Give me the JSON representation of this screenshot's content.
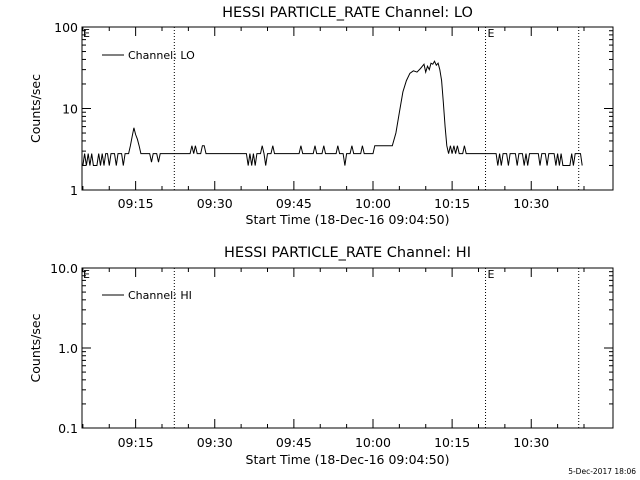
{
  "footer": {
    "timestamp": "5-Dec-2017 18:06"
  },
  "chart_data": [
    {
      "type": "line",
      "title": "HESSI PARTICLE_RATE Channel: LO",
      "xlabel": "Start Time (18-Dec-16 09:04:50)",
      "ylabel": "Counts/sec",
      "yscale": "log",
      "ylim": [
        1,
        100
      ],
      "xlim": [
        "09:04:50",
        "10:45:30"
      ],
      "x_ticks": [
        "09:15",
        "09:30",
        "09:45",
        "10:00",
        "10:15",
        "10:30"
      ],
      "y_ticks": [
        "1",
        "10",
        "100"
      ],
      "legend": {
        "label": "Channel: LO",
        "position": "top-left"
      },
      "event_lines": [
        {
          "time": "09:22:20",
          "label": ""
        },
        {
          "time": "10:21:20",
          "label": "E"
        },
        {
          "time": "10:39:00",
          "label": ""
        }
      ],
      "corner_label": "E",
      "series": [
        {
          "name": "Channel: LO",
          "points": [
            [
              "09:05:00",
              2
            ],
            [
              "09:05:20",
              2.8
            ],
            [
              "09:05:40",
              2
            ],
            [
              "09:06:00",
              2.8
            ],
            [
              "09:06:20",
              2
            ],
            [
              "09:06:40",
              2.8
            ],
            [
              "09:07:00",
              2
            ],
            [
              "09:07:40",
              2
            ],
            [
              "09:08:00",
              2.8
            ],
            [
              "09:08:20",
              2
            ],
            [
              "09:08:40",
              2.8
            ],
            [
              "09:09:00",
              2
            ],
            [
              "09:09:20",
              2.8
            ],
            [
              "09:09:40",
              2.8
            ],
            [
              "09:10:00",
              2
            ],
            [
              "09:10:20",
              2.8
            ],
            [
              "09:11:00",
              2.8
            ],
            [
              "09:11:20",
              2
            ],
            [
              "09:11:40",
              2.8
            ],
            [
              "09:12:20",
              2.8
            ],
            [
              "09:12:40",
              2
            ],
            [
              "09:13:00",
              2.8
            ],
            [
              "09:13:40",
              2.8
            ],
            [
              "09:14:00",
              3.5
            ],
            [
              "09:14:20",
              4.5
            ],
            [
              "09:14:40",
              5.8
            ],
            [
              "09:15:00",
              4.8
            ],
            [
              "09:15:20",
              4.2
            ],
            [
              "09:15:40",
              3.5
            ],
            [
              "09:16:00",
              2.8
            ],
            [
              "09:17:40",
              2.8
            ],
            [
              "09:18:00",
              2.2
            ],
            [
              "09:18:20",
              2.8
            ],
            [
              "09:19:00",
              2.8
            ],
            [
              "09:19:20",
              2.2
            ],
            [
              "09:19:40",
              2.8
            ],
            [
              "09:22:00",
              2.8
            ],
            [
              "09:22:40",
              2.8
            ],
            [
              "09:25:20",
              2.8
            ],
            [
              "09:25:40",
              3.5
            ],
            [
              "09:26:00",
              2.8
            ],
            [
              "09:26:20",
              3.5
            ],
            [
              "09:26:40",
              2.8
            ],
            [
              "09:27:20",
              2.8
            ],
            [
              "09:27:40",
              3.5
            ],
            [
              "09:28:00",
              3.5
            ],
            [
              "09:28:20",
              2.8
            ],
            [
              "09:36:00",
              2.8
            ],
            [
              "09:36:20",
              2
            ],
            [
              "09:36:40",
              2.8
            ],
            [
              "09:37:00",
              2
            ],
            [
              "09:37:20",
              2.8
            ],
            [
              "09:37:40",
              2
            ],
            [
              "09:38:00",
              2.8
            ],
            [
              "09:38:40",
              2.8
            ],
            [
              "09:39:00",
              3.5
            ],
            [
              "09:39:20",
              2.8
            ],
            [
              "09:39:40",
              2
            ],
            [
              "09:40:00",
              2.8
            ],
            [
              "09:40:40",
              2.8
            ],
            [
              "09:41:00",
              3.5
            ],
            [
              "09:41:20",
              2.8
            ],
            [
              "09:46:00",
              2.8
            ],
            [
              "09:46:20",
              3.5
            ],
            [
              "09:46:40",
              2.8
            ],
            [
              "09:48:40",
              2.8
            ],
            [
              "09:49:00",
              3.5
            ],
            [
              "09:49:20",
              2.8
            ],
            [
              "09:50:20",
              2.8
            ],
            [
              "09:50:40",
              3.5
            ],
            [
              "09:51:00",
              2.8
            ],
            [
              "09:53:00",
              2.8
            ],
            [
              "09:53:20",
              3.5
            ],
            [
              "09:53:40",
              2.8
            ],
            [
              "09:54:20",
              2.8
            ],
            [
              "09:54:40",
              2
            ],
            [
              "09:55:00",
              2.8
            ],
            [
              "09:55:40",
              2.8
            ],
            [
              "09:56:00",
              3.5
            ],
            [
              "09:56:20",
              2.8
            ],
            [
              "09:57:40",
              2.8
            ],
            [
              "09:58:00",
              3.5
            ],
            [
              "09:58:20",
              2.8
            ],
            [
              "10:00:00",
              2.8
            ],
            [
              "10:00:20",
              3.5
            ],
            [
              "10:03:40",
              3.5
            ],
            [
              "10:04:20",
              5
            ],
            [
              "10:05:00",
              9
            ],
            [
              "10:05:40",
              16
            ],
            [
              "10:06:20",
              22
            ],
            [
              "10:07:00",
              27
            ],
            [
              "10:07:40",
              29
            ],
            [
              "10:08:20",
              28
            ],
            [
              "10:09:00",
              31
            ],
            [
              "10:09:40",
              35
            ],
            [
              "10:10:00",
              28
            ],
            [
              "10:10:20",
              33
            ],
            [
              "10:10:40",
              30
            ],
            [
              "10:11:00",
              36
            ],
            [
              "10:11:20",
              35
            ],
            [
              "10:11:40",
              38
            ],
            [
              "10:12:00",
              34
            ],
            [
              "10:12:20",
              36
            ],
            [
              "10:12:40",
              30
            ],
            [
              "10:13:00",
              22
            ],
            [
              "10:13:20",
              12
            ],
            [
              "10:13:40",
              6
            ],
            [
              "10:14:00",
              3.5
            ],
            [
              "10:14:20",
              2.8
            ],
            [
              "10:14:40",
              3.5
            ],
            [
              "10:15:00",
              2.8
            ],
            [
              "10:15:20",
              3.5
            ],
            [
              "10:15:40",
              2.8
            ],
            [
              "10:16:00",
              3.5
            ],
            [
              "10:16:20",
              2.8
            ],
            [
              "10:17:00",
              2.8
            ],
            [
              "10:17:20",
              3.5
            ],
            [
              "10:17:40",
              2.8
            ],
            [
              "10:23:20",
              2.8
            ],
            [
              "10:23:40",
              2
            ],
            [
              "10:24:00",
              2.8
            ],
            [
              "10:24:20",
              2
            ],
            [
              "10:24:40",
              2.8
            ],
            [
              "10:25:20",
              2.8
            ],
            [
              "10:25:40",
              2
            ],
            [
              "10:26:00",
              2.8
            ],
            [
              "10:27:00",
              2.8
            ],
            [
              "10:27:20",
              2
            ],
            [
              "10:27:40",
              2.8
            ],
            [
              "10:28:20",
              2.8
            ],
            [
              "10:28:40",
              2
            ],
            [
              "10:29:00",
              2.8
            ],
            [
              "10:29:20",
              2
            ],
            [
              "10:29:40",
              2.8
            ],
            [
              "10:31:20",
              2.8
            ],
            [
              "10:31:40",
              2
            ],
            [
              "10:32:00",
              2.8
            ],
            [
              "10:32:40",
              2.8
            ],
            [
              "10:33:00",
              2
            ],
            [
              "10:33:20",
              2.8
            ],
            [
              "10:34:20",
              2.8
            ],
            [
              "10:34:40",
              2
            ],
            [
              "10:35:00",
              2.8
            ],
            [
              "10:35:20",
              2
            ],
            [
              "10:35:40",
              2.8
            ],
            [
              "10:36:00",
              2
            ],
            [
              "10:37:20",
              2
            ],
            [
              "10:37:40",
              2.8
            ],
            [
              "10:38:00",
              2
            ],
            [
              "10:38:20",
              2.8
            ],
            [
              "10:39:20",
              2.8
            ],
            [
              "10:39:40",
              2
            ]
          ]
        }
      ]
    },
    {
      "type": "line",
      "title": "HESSI PARTICLE_RATE Channel: HI",
      "xlabel": "Start Time (18-Dec-16 09:04:50)",
      "ylabel": "Counts/sec",
      "yscale": "log",
      "ylim": [
        0.1,
        10
      ],
      "xlim": [
        "09:04:50",
        "10:45:30"
      ],
      "x_ticks": [
        "09:15",
        "09:30",
        "09:45",
        "10:00",
        "10:15",
        "10:30"
      ],
      "y_ticks": [
        "0.1",
        "1.0",
        "10.0"
      ],
      "legend": {
        "label": "Channel: HI",
        "position": "top-left"
      },
      "event_lines": [
        {
          "time": "09:22:20",
          "label": ""
        },
        {
          "time": "10:21:20",
          "label": "E"
        },
        {
          "time": "10:39:00",
          "label": ""
        }
      ],
      "corner_label": "E",
      "series": [
        {
          "name": "Channel: HI",
          "points": []
        }
      ]
    }
  ]
}
